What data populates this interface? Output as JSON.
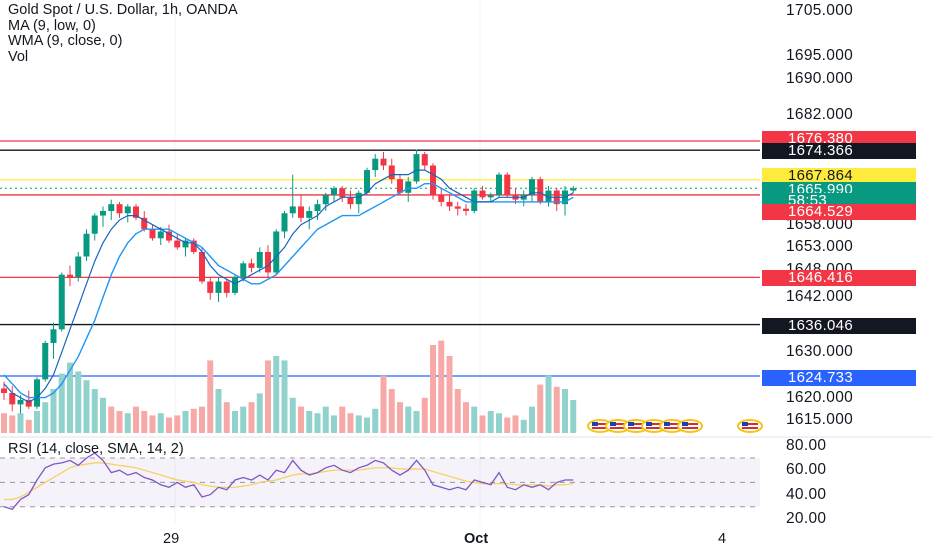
{
  "legend": {
    "title": "Gold Spot / U.S. Dollar, 1h, OANDA",
    "ma": "MA (9, low, 0)",
    "wma": "WMA (9, close, 0)",
    "vol": "Vol"
  },
  "rsi_label": "RSI (14, close, SMA, 14, 2)",
  "price_axis": [
    "1705.000",
    "1695.000",
    "1690.000",
    "1682.000",
    "1658.000",
    "1653.000",
    "1648.000",
    "1642.000",
    "1630.000",
    "1620.000",
    "1615.000"
  ],
  "rsi_axis": [
    "80.00",
    "60.00",
    "40.00",
    "20.00"
  ],
  "x_axis": [
    {
      "label": "29",
      "bold": false
    },
    {
      "label": "Oct",
      "bold": true
    },
    {
      "label": "4",
      "bold": false
    }
  ],
  "badges": [
    {
      "text": "1676.380",
      "color": "#f23645"
    },
    {
      "text": "1674.366",
      "color": "#131722"
    },
    {
      "text": "1667.864",
      "color": "#ffeb3b",
      "text_color": "#131722"
    },
    {
      "text": "1665.990",
      "color": "#089981"
    },
    {
      "text": "58:53",
      "color": "#089981"
    },
    {
      "text": "1664.529",
      "color": "#f23645"
    },
    {
      "text": "1646.416",
      "color": "#f23645"
    },
    {
      "text": "1636.046",
      "color": "#131722"
    },
    {
      "text": "1624.733",
      "color": "#2962ff"
    }
  ],
  "colors": {
    "up": "#089981",
    "down": "#f23645",
    "ma": "#2196f3",
    "wma": "#1565c0",
    "rsi": "#7e57c2",
    "rsi_ma": "#f5d05a",
    "hline_red": "#f23645",
    "hline_black": "#131722",
    "hline_yellow": "#ffeb3b",
    "hline_blue": "#2962ff"
  },
  "chart_data": {
    "type": "candlestick",
    "title": "Gold Spot / U.S. Dollar, 1h, OANDA",
    "ylim": [
      1612,
      1710
    ],
    "horizontal_levels": [
      1676.38,
      1674.366,
      1667.864,
      1664.529,
      1646.416,
      1636.046,
      1624.733
    ],
    "candles": [
      [
        1622.0,
        1623.5,
        1619.5,
        1621.0
      ],
      [
        1621.0,
        1622.5,
        1617.0,
        1618.5
      ],
      [
        1618.5,
        1620.5,
        1616.5,
        1619.5
      ],
      [
        1619.5,
        1621.5,
        1617.5,
        1618.0
      ],
      [
        1618.0,
        1624.5,
        1617.5,
        1624.0
      ],
      [
        1624.0,
        1632.5,
        1623.5,
        1632.0
      ],
      [
        1632.0,
        1636.5,
        1628.5,
        1635.0
      ],
      [
        1635.0,
        1647.5,
        1634.5,
        1647.0
      ],
      [
        1647.0,
        1649.0,
        1644.5,
        1646.5
      ],
      [
        1646.5,
        1652.0,
        1645.5,
        1651.0
      ],
      [
        1651.0,
        1657.0,
        1650.0,
        1656.0
      ],
      [
        1656.0,
        1660.5,
        1654.5,
        1660.0
      ],
      [
        1660.0,
        1662.0,
        1657.5,
        1661.0
      ],
      [
        1661.0,
        1663.5,
        1659.0,
        1662.5
      ],
      [
        1662.5,
        1663.0,
        1659.5,
        1660.5
      ],
      [
        1660.5,
        1662.5,
        1658.5,
        1662.0
      ],
      [
        1662.0,
        1662.5,
        1659.0,
        1659.5
      ],
      [
        1659.5,
        1661.0,
        1656.5,
        1657.0
      ],
      [
        1657.0,
        1658.0,
        1654.5,
        1655.0
      ],
      [
        1655.0,
        1657.5,
        1653.5,
        1656.5
      ],
      [
        1656.5,
        1658.0,
        1654.0,
        1654.5
      ],
      [
        1654.5,
        1656.0,
        1652.5,
        1653.0
      ],
      [
        1653.0,
        1655.0,
        1651.0,
        1654.5
      ],
      [
        1654.5,
        1655.0,
        1651.5,
        1652.0
      ],
      [
        1652.0,
        1653.0,
        1645.0,
        1645.5
      ],
      [
        1645.5,
        1646.5,
        1641.5,
        1643.0
      ],
      [
        1643.0,
        1646.5,
        1641.0,
        1645.5
      ],
      [
        1645.5,
        1646.0,
        1642.0,
        1643.0
      ],
      [
        1643.0,
        1647.0,
        1642.5,
        1646.5
      ],
      [
        1646.5,
        1650.0,
        1645.5,
        1649.5
      ],
      [
        1649.5,
        1650.5,
        1647.5,
        1648.5
      ],
      [
        1648.5,
        1653.0,
        1647.5,
        1652.0
      ],
      [
        1652.0,
        1653.5,
        1646.5,
        1647.5
      ],
      [
        1647.5,
        1657.0,
        1647.0,
        1656.5
      ],
      [
        1656.5,
        1661.0,
        1655.0,
        1660.5
      ],
      [
        1660.5,
        1669.0,
        1659.5,
        1662.0
      ],
      [
        1662.0,
        1664.5,
        1658.5,
        1659.5
      ],
      [
        1659.5,
        1662.0,
        1657.0,
        1661.0
      ],
      [
        1661.0,
        1663.5,
        1659.0,
        1662.5
      ],
      [
        1662.5,
        1665.0,
        1661.0,
        1664.5
      ],
      [
        1664.5,
        1666.5,
        1663.0,
        1666.0
      ],
      [
        1666.0,
        1666.5,
        1663.0,
        1664.0
      ],
      [
        1664.0,
        1665.5,
        1661.5,
        1662.5
      ],
      [
        1662.5,
        1665.5,
        1660.5,
        1665.0
      ],
      [
        1665.0,
        1670.5,
        1664.5,
        1670.0
      ],
      [
        1670.0,
        1673.5,
        1668.5,
        1672.5
      ],
      [
        1672.5,
        1674.0,
        1670.0,
        1671.0
      ],
      [
        1671.0,
        1672.5,
        1667.0,
        1668.0
      ],
      [
        1668.0,
        1669.0,
        1664.5,
        1665.0
      ],
      [
        1665.0,
        1668.5,
        1663.0,
        1667.5
      ],
      [
        1667.5,
        1674.5,
        1667.0,
        1673.5
      ],
      [
        1673.5,
        1674.0,
        1670.0,
        1671.0
      ],
      [
        1671.0,
        1671.5,
        1663.5,
        1664.5
      ],
      [
        1664.5,
        1666.0,
        1662.0,
        1663.0
      ],
      [
        1663.0,
        1664.5,
        1661.0,
        1662.0
      ],
      [
        1662.0,
        1663.0,
        1660.0,
        1661.5
      ],
      [
        1661.5,
        1662.5,
        1660.0,
        1661.0
      ],
      [
        1661.0,
        1666.0,
        1660.5,
        1665.5
      ],
      [
        1665.5,
        1666.5,
        1663.5,
        1664.0
      ],
      [
        1664.0,
        1665.0,
        1663.0,
        1664.5
      ],
      [
        1664.5,
        1669.5,
        1664.0,
        1669.0
      ],
      [
        1669.0,
        1669.5,
        1664.0,
        1664.5
      ],
      [
        1664.5,
        1666.0,
        1662.5,
        1663.5
      ],
      [
        1663.5,
        1665.5,
        1662.0,
        1664.5
      ],
      [
        1664.5,
        1668.5,
        1663.0,
        1668.0
      ],
      [
        1668.0,
        1668.5,
        1662.5,
        1663.0
      ],
      [
        1663.0,
        1666.5,
        1662.0,
        1665.5
      ],
      [
        1665.5,
        1666.0,
        1661.0,
        1662.5
      ],
      [
        1662.5,
        1666.5,
        1660.0,
        1665.5
      ],
      [
        1665.5,
        1666.5,
        1665.0,
        1666.0
      ]
    ],
    "volume": [
      9,
      8,
      9,
      6,
      10,
      14,
      20,
      27,
      32,
      28,
      24,
      20,
      16,
      12,
      10,
      9,
      12,
      10,
      8,
      9,
      7,
      8,
      10,
      11,
      12,
      33,
      20,
      14,
      10,
      12,
      14,
      18,
      33,
      35,
      33,
      16,
      12,
      10,
      9,
      12,
      8,
      12,
      9,
      8,
      7,
      11,
      26,
      20,
      14,
      12,
      10,
      16,
      40,
      42,
      35,
      20,
      14,
      12,
      8,
      10,
      9,
      7,
      8,
      6,
      12,
      22,
      26,
      21,
      20,
      15
    ],
    "volume_colors_down": [
      1,
      1,
      0,
      1,
      0,
      0,
      0,
      0,
      0,
      0,
      0,
      0,
      0,
      1,
      1,
      0,
      1,
      1,
      1,
      0,
      1,
      1,
      0,
      1,
      1,
      1,
      0,
      1,
      0,
      0,
      1,
      0,
      1,
      0,
      0,
      0,
      1,
      0,
      0,
      0,
      0,
      1,
      1,
      0,
      0,
      0,
      1,
      1,
      1,
      0,
      0,
      1,
      1,
      1,
      1,
      1,
      1,
      0,
      1,
      0,
      0,
      1,
      1,
      0,
      0,
      1,
      0,
      1,
      0,
      0
    ],
    "ma": [
      1625,
      1623,
      1621,
      1620,
      1620,
      1620,
      1621,
      1623,
      1626,
      1629,
      1633,
      1637,
      1642,
      1647,
      1651,
      1654,
      1656,
      1657,
      1657,
      1657,
      1657,
      1656,
      1655,
      1654,
      1653,
      1651,
      1649,
      1648,
      1647,
      1646,
      1645,
      1645,
      1646,
      1647,
      1649,
      1651,
      1653,
      1655,
      1657,
      1658,
      1659,
      1660,
      1660,
      1660,
      1661,
      1662,
      1663,
      1664,
      1665,
      1666,
      1666,
      1667,
      1667,
      1666,
      1665,
      1664,
      1663,
      1663,
      1663,
      1663,
      1663,
      1663,
      1663,
      1663,
      1663,
      1663,
      1663,
      1663,
      1663,
      1664
    ],
    "wma": [
      1623,
      1621,
      1620,
      1619,
      1620,
      1622,
      1625,
      1630,
      1635,
      1640,
      1645,
      1650,
      1654,
      1657,
      1659,
      1660,
      1660,
      1659,
      1658,
      1657,
      1656,
      1655,
      1654,
      1654,
      1652,
      1649,
      1647,
      1646,
      1645,
      1646,
      1647,
      1648,
      1649,
      1651,
      1653,
      1656,
      1658,
      1659,
      1660,
      1662,
      1663,
      1664,
      1664,
      1664,
      1665,
      1667,
      1668,
      1669,
      1669,
      1669,
      1670,
      1670,
      1669,
      1668,
      1666,
      1665,
      1664,
      1663,
      1663,
      1663,
      1664,
      1664,
      1664,
      1664,
      1665,
      1665,
      1664,
      1664,
      1664,
      1665
    ],
    "rsi": [
      30,
      28,
      36,
      40,
      52,
      62,
      65,
      66,
      68,
      64,
      70,
      74,
      68,
      58,
      60,
      56,
      58,
      54,
      52,
      48,
      46,
      50,
      46,
      48,
      38,
      40,
      46,
      44,
      52,
      54,
      52,
      56,
      52,
      60,
      58,
      68,
      60,
      56,
      58,
      62,
      64,
      60,
      58,
      62,
      64,
      68,
      66,
      60,
      56,
      60,
      68,
      60,
      48,
      46,
      44,
      46,
      44,
      52,
      50,
      48,
      58,
      46,
      44,
      48,
      46,
      48,
      44,
      50,
      52,
      52
    ],
    "rsi_ma": [
      36,
      36,
      38,
      42,
      46,
      50,
      54,
      58,
      62,
      64,
      65,
      66,
      66,
      65,
      64,
      63,
      62,
      60,
      58,
      56,
      54,
      52,
      51,
      50,
      48,
      47,
      46,
      46,
      46,
      47,
      48,
      50,
      51,
      52,
      54,
      56,
      57,
      57,
      58,
      59,
      60,
      60,
      60,
      60,
      61,
      62,
      62,
      62,
      61,
      61,
      61,
      61,
      59,
      57,
      55,
      53,
      51,
      50,
      49,
      49,
      49,
      49,
      48,
      48,
      48,
      48,
      47,
      48,
      48,
      49
    ],
    "rsi_range": [
      20,
      80
    ],
    "rsi_bands": [
      70,
      50,
      30
    ]
  }
}
